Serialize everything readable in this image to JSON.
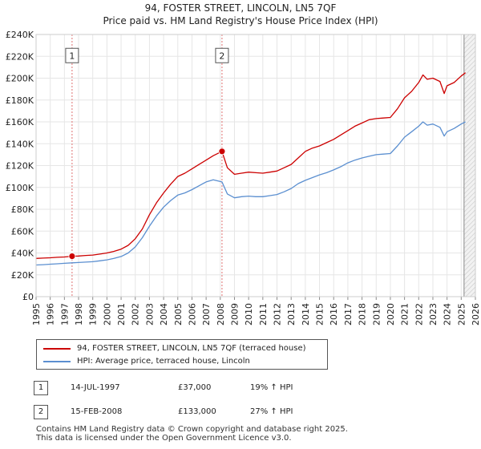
{
  "chart_data": {
    "type": "line",
    "title": "94, FOSTER STREET, LINCOLN, LN5 7QF",
    "subtitle": "Price paid vs. HM Land Registry's House Price Index (HPI)",
    "xlabel": "",
    "ylabel": "",
    "xlim": [
      1995,
      2026
    ],
    "ylim": [
      0,
      240000
    ],
    "grid": true,
    "x_ticks": [
      "1995",
      "1996",
      "1997",
      "1998",
      "1999",
      "2000",
      "2001",
      "2002",
      "2003",
      "2004",
      "2005",
      "2006",
      "2007",
      "2008",
      "2009",
      "2010",
      "2011",
      "2012",
      "2013",
      "2014",
      "2015",
      "2016",
      "2017",
      "2018",
      "2019",
      "2020",
      "2021",
      "2022",
      "2023",
      "2024",
      "2025",
      "2026"
    ],
    "y_ticks": [
      {
        "value": 0,
        "label": "£0"
      },
      {
        "value": 20000,
        "label": "£20K"
      },
      {
        "value": 40000,
        "label": "£40K"
      },
      {
        "value": 60000,
        "label": "£60K"
      },
      {
        "value": 80000,
        "label": "£80K"
      },
      {
        "value": 100000,
        "label": "£100K"
      },
      {
        "value": 120000,
        "label": "£120K"
      },
      {
        "value": 140000,
        "label": "£140K"
      },
      {
        "value": 160000,
        "label": "£160K"
      },
      {
        "value": 180000,
        "label": "£180K"
      },
      {
        "value": 200000,
        "label": "£200K"
      },
      {
        "value": 220000,
        "label": "£220K"
      },
      {
        "value": 240000,
        "label": "£240K"
      }
    ],
    "series": [
      {
        "name": "94, FOSTER STREET, LINCOLN, LN5 7QF (terraced house)",
        "color": "#cc0000",
        "x": [
          1995.0,
          1995.5,
          1996.0,
          1996.5,
          1997.0,
          1997.54,
          1998.0,
          1998.5,
          1999.0,
          1999.5,
          2000.0,
          2000.5,
          2001.0,
          2001.5,
          2002.0,
          2002.5,
          2003.0,
          2003.5,
          2004.0,
          2004.5,
          2005.0,
          2005.5,
          2006.0,
          2006.5,
          2007.0,
          2007.5,
          2008.12,
          2008.5,
          2009.0,
          2009.5,
          2010.0,
          2010.5,
          2011.0,
          2011.5,
          2012.0,
          2012.5,
          2013.0,
          2013.5,
          2014.0,
          2014.5,
          2015.0,
          2015.5,
          2016.0,
          2016.5,
          2017.0,
          2017.5,
          2018.0,
          2018.5,
          2019.0,
          2019.5,
          2020.0,
          2020.5,
          2021.0,
          2021.5,
          2022.0,
          2022.3,
          2022.6,
          2023.0,
          2023.5,
          2023.8,
          2024.0,
          2024.5,
          2025.0,
          2025.3
        ],
        "y": [
          35000,
          35300,
          35600,
          36000,
          36300,
          37000,
          37200,
          37700,
          38100,
          39000,
          40000,
          41500,
          43500,
          47000,
          53000,
          62000,
          75000,
          86000,
          95000,
          103000,
          110000,
          113000,
          117000,
          121000,
          125000,
          129000,
          133000,
          118000,
          112000,
          113000,
          114000,
          113500,
          113000,
          114000,
          115000,
          118000,
          121000,
          127000,
          133000,
          136000,
          138000,
          141000,
          144000,
          148000,
          152000,
          156000,
          159000,
          162000,
          163000,
          163500,
          164000,
          172000,
          182000,
          188000,
          196000,
          203000,
          199000,
          200000,
          197000,
          186000,
          193000,
          196000,
          202000,
          205000
        ]
      },
      {
        "name": "HPI: Average price, terraced house, Lincoln",
        "color": "#5b8fd0",
        "x": [
          1995.0,
          1995.5,
          1996.0,
          1996.5,
          1997.0,
          1997.54,
          1998.0,
          1998.5,
          1999.0,
          1999.5,
          2000.0,
          2000.5,
          2001.0,
          2001.5,
          2002.0,
          2002.5,
          2003.0,
          2003.5,
          2004.0,
          2004.5,
          2005.0,
          2005.5,
          2006.0,
          2006.5,
          2007.0,
          2007.5,
          2008.12,
          2008.5,
          2009.0,
          2009.5,
          2010.0,
          2010.5,
          2011.0,
          2011.5,
          2012.0,
          2012.5,
          2013.0,
          2013.5,
          2014.0,
          2014.5,
          2015.0,
          2015.5,
          2016.0,
          2016.5,
          2017.0,
          2017.5,
          2018.0,
          2018.5,
          2019.0,
          2019.5,
          2020.0,
          2020.5,
          2021.0,
          2021.5,
          2022.0,
          2022.3,
          2022.6,
          2023.0,
          2023.5,
          2023.8,
          2024.0,
          2024.5,
          2025.0,
          2025.3
        ],
        "y": [
          29000,
          29300,
          29700,
          30100,
          30500,
          31000,
          31300,
          31600,
          32000,
          32800,
          33700,
          35000,
          36800,
          40000,
          45500,
          54000,
          64500,
          74000,
          82000,
          88000,
          93000,
          95000,
          98000,
          101500,
          105000,
          107000,
          105000,
          94000,
          90500,
          91500,
          92000,
          91500,
          91500,
          92500,
          93500,
          96000,
          99000,
          103500,
          106500,
          109000,
          111500,
          113500,
          116000,
          119000,
          122500,
          125000,
          127000,
          128500,
          130000,
          130500,
          131000,
          138000,
          146000,
          151000,
          156000,
          160000,
          157000,
          158000,
          155000,
          147000,
          151000,
          154000,
          158000,
          160000
        ]
      }
    ],
    "sales": [
      {
        "label": "1",
        "date": "14-JUL-1997",
        "x": 1997.54,
        "price": 37000,
        "price_label": "£37,000",
        "hpi_change": "19% ↑ HPI",
        "marker_color": "#cc0000"
      },
      {
        "label": "2",
        "date": "15-FEB-2008",
        "x": 2008.12,
        "price": 133000,
        "price_label": "£133,000",
        "hpi_change": "27% ↑ HPI",
        "marker_color": "#cc0000"
      }
    ],
    "shaded_region_from": 2025.2,
    "annotation_box_value": 220000
  },
  "footer": {
    "line1": "Contains HM Land Registry data © Crown copyright and database right 2025.",
    "line2": "This data is licensed under the Open Government Licence v3.0."
  }
}
